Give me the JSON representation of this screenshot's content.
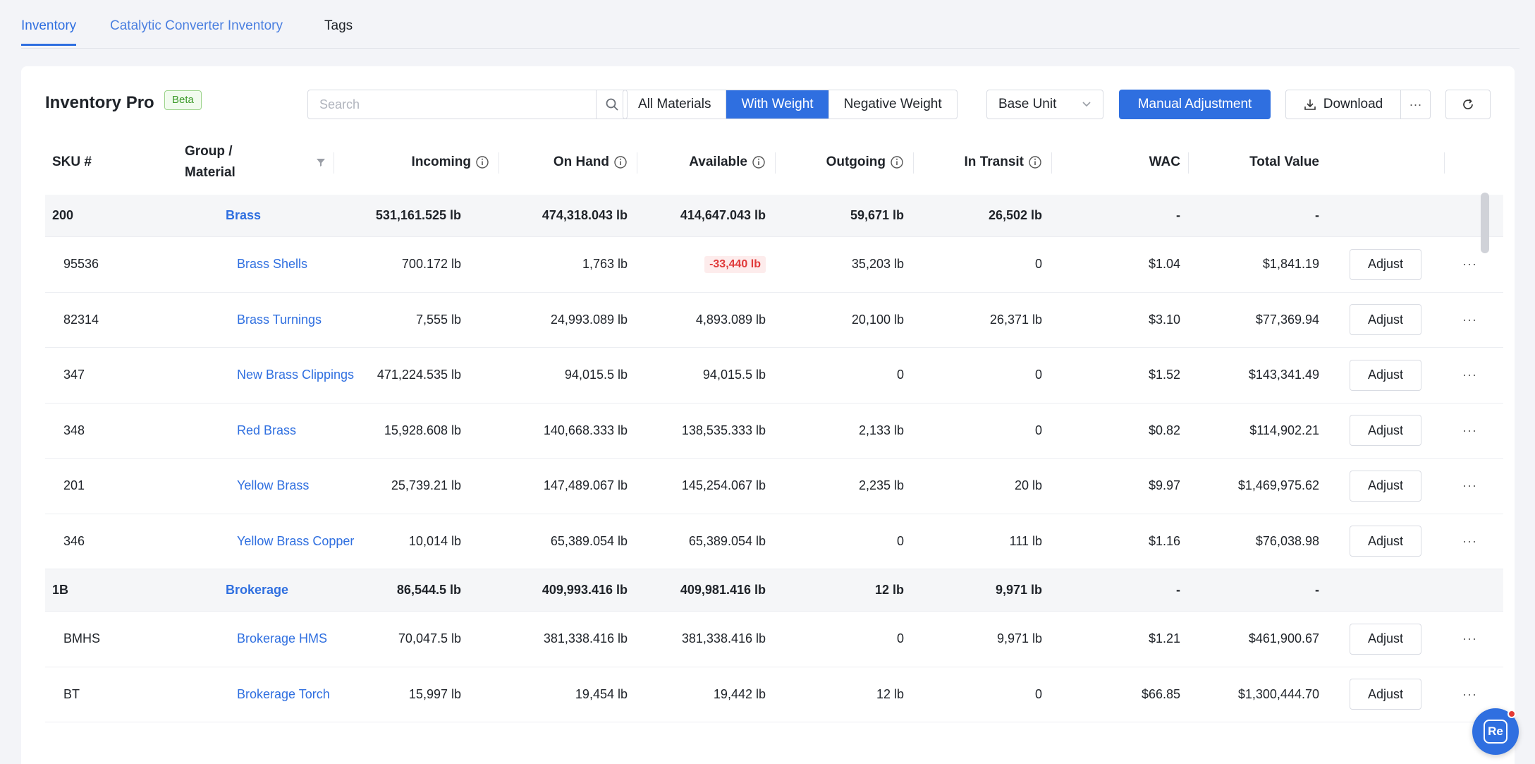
{
  "tabs": [
    {
      "label": "Inventory"
    },
    {
      "label": "Catalytic Converter Inventory"
    },
    {
      "label": "Tags"
    }
  ],
  "toolbar": {
    "title": "Inventory Pro",
    "badge": "Beta",
    "search_placeholder": "Search",
    "filters": [
      "All Materials",
      "With Weight",
      "Negative Weight"
    ],
    "active_filter": "With Weight",
    "unit_select": "Base Unit",
    "manual_adjustment": "Manual Adjustment",
    "download": "Download",
    "more": "···"
  },
  "columns": {
    "sku": "SKU #",
    "group_line1": "Group /",
    "group_line2": "Material",
    "incoming": "Incoming",
    "on_hand": "On Hand",
    "available": "Available",
    "outgoing": "Outgoing",
    "in_transit": "In Transit",
    "wac": "WAC",
    "total_value": "Total Value"
  },
  "rows": [
    {
      "type": "group",
      "sku": "200",
      "name": "Brass",
      "incoming": "531,161.525 lb",
      "on_hand": "474,318.043 lb",
      "available": "414,647.043 lb",
      "outgoing": "59,671 lb",
      "in_transit": "26,502 lb",
      "wac": "-",
      "total": "-"
    },
    {
      "type": "item",
      "sku": "95536",
      "name": "Brass Shells",
      "incoming": "700.172 lb",
      "on_hand": "1,763 lb",
      "available": "-33,440 lb",
      "negative": true,
      "outgoing": "35,203 lb",
      "in_transit": "0",
      "wac": "$1.04",
      "total": "$1,841.19",
      "action": "Adjust"
    },
    {
      "type": "item",
      "sku": "82314",
      "name": "Brass Turnings",
      "incoming": "7,555 lb",
      "on_hand": "24,993.089 lb",
      "available": "4,893.089 lb",
      "outgoing": "20,100 lb",
      "in_transit": "26,371 lb",
      "wac": "$3.10",
      "total": "$77,369.94",
      "action": "Adjust"
    },
    {
      "type": "item",
      "sku": "347",
      "name": "New Brass Clippings",
      "incoming": "471,224.535 lb",
      "on_hand": "94,015.5 lb",
      "available": "94,015.5 lb",
      "outgoing": "0",
      "in_transit": "0",
      "wac": "$1.52",
      "total": "$143,341.49",
      "action": "Adjust"
    },
    {
      "type": "item",
      "sku": "348",
      "name": "Red Brass",
      "incoming": "15,928.608 lb",
      "on_hand": "140,668.333 lb",
      "available": "138,535.333 lb",
      "outgoing": "2,133 lb",
      "in_transit": "0",
      "wac": "$0.82",
      "total": "$114,902.21",
      "action": "Adjust"
    },
    {
      "type": "item",
      "sku": "201",
      "name": "Yellow Brass",
      "incoming": "25,739.21 lb",
      "on_hand": "147,489.067 lb",
      "available": "145,254.067 lb",
      "outgoing": "2,235 lb",
      "in_transit": "20 lb",
      "wac": "$9.97",
      "total": "$1,469,975.62",
      "action": "Adjust"
    },
    {
      "type": "item",
      "sku": "346",
      "name": "Yellow Brass Copper",
      "incoming": "10,014 lb",
      "on_hand": "65,389.054 lb",
      "available": "65,389.054 lb",
      "outgoing": "0",
      "in_transit": "111 lb",
      "wac": "$1.16",
      "total": "$76,038.98",
      "action": "Adjust"
    },
    {
      "type": "group",
      "sku": "1B",
      "name": "Brokerage",
      "incoming": "86,544.5 lb",
      "on_hand": "409,993.416 lb",
      "available": "409,981.416 lb",
      "outgoing": "12 lb",
      "in_transit": "9,971 lb",
      "wac": "-",
      "total": "-"
    },
    {
      "type": "item",
      "sku": "BMHS",
      "name": "Brokerage HMS",
      "incoming": "70,047.5 lb",
      "on_hand": "381,338.416 lb",
      "available": "381,338.416 lb",
      "outgoing": "0",
      "in_transit": "9,971 lb",
      "wac": "$1.21",
      "total": "$461,900.67",
      "action": "Adjust"
    },
    {
      "type": "item",
      "sku": "BT",
      "name": "Brokerage Torch",
      "incoming": "15,997 lb",
      "on_hand": "19,454 lb",
      "available": "19,442 lb",
      "outgoing": "12 lb",
      "in_transit": "0",
      "wac": "$66.85",
      "total": "$1,300,444.70",
      "action": "Adjust"
    }
  ],
  "fab": {
    "label": "Re"
  },
  "colors": {
    "accent": "#2f6fe0",
    "negative": "#e03a3a",
    "group_bg": "#f5f6f8"
  }
}
